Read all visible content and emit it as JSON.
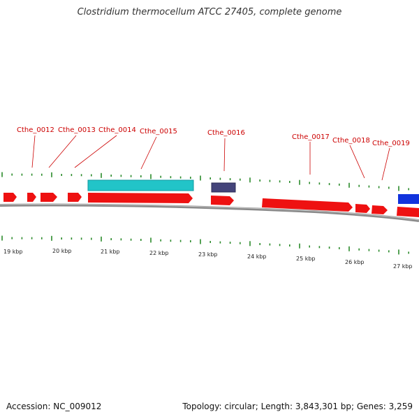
{
  "title": "Clostridium thermocellum ATCC 27405, complete genome",
  "footer": {
    "accession": "Accession: NC_009012",
    "summary": "Topology: circular; Length: 3,843,301 bp; Genes: 3,259"
  },
  "gene_labels": [
    "Cthe_0012",
    "Cthe_0013",
    "Cthe_0014",
    "Cthe_0015",
    "Cthe_0016",
    "Cthe_0017",
    "Cthe_0018",
    "Cthe_0019"
  ],
  "kbp_labels": [
    "19 kbp",
    "20 kbp",
    "21 kbp",
    "22 kbp",
    "23 kbp",
    "24 kbp",
    "25 kbp",
    "26 kbp",
    "27 kbp"
  ],
  "colors": {
    "cds": "#ee1111",
    "rrna": "#22c4c8",
    "trna": "#44447a",
    "other_feature": "#1133dd",
    "backbone": "#8a8a8a",
    "tick": "#2a8a2a",
    "label": "#cc0000"
  }
}
